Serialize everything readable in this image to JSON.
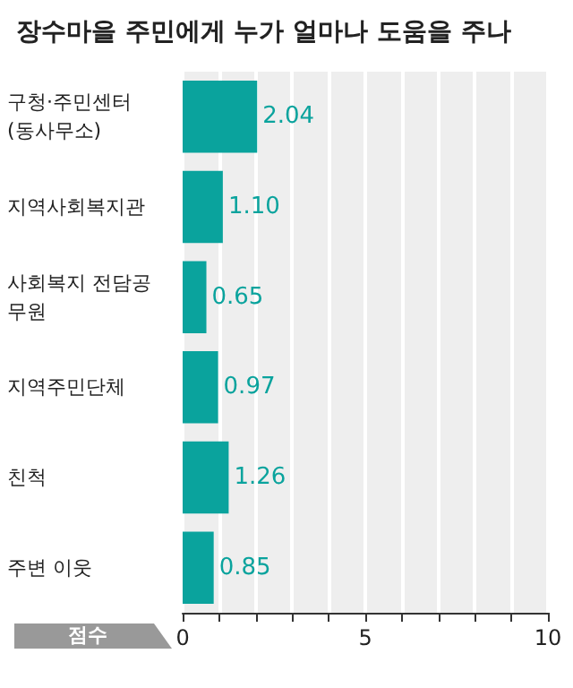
{
  "chart_data": {
    "type": "bar",
    "orientation": "horizontal",
    "title": "장수마을 주민에게 누가 얼마나 도움을 주나",
    "xlabel": "점수",
    "categories": [
      "구청·주민센터 (동사무소)",
      "지역사회복지관",
      "사회복지 전담공무원",
      "지역주민단체",
      "친척",
      "주변 이웃"
    ],
    "values": [
      2.04,
      1.1,
      0.65,
      0.97,
      1.26,
      0.85
    ],
    "color": "#0aa39d",
    "value_labels": [
      "2.04",
      "1.10",
      "0.65",
      "0.97",
      "1.26",
      "0.85"
    ],
    "xlim": [
      0,
      10
    ],
    "xticks": [
      0,
      {
        "value": 1,
        "label": null
      },
      {
        "value": 2,
        "label": null
      },
      {
        "value": 3,
        "label": null
      },
      {
        "value": 4,
        "label": null
      },
      5,
      {
        "value": 6,
        "label": null
      },
      {
        "value": 7,
        "label": null
      },
      {
        "value": 8,
        "label": null
      },
      {
        "value": 9,
        "label": null
      },
      10
    ],
    "grid": "x"
  }
}
